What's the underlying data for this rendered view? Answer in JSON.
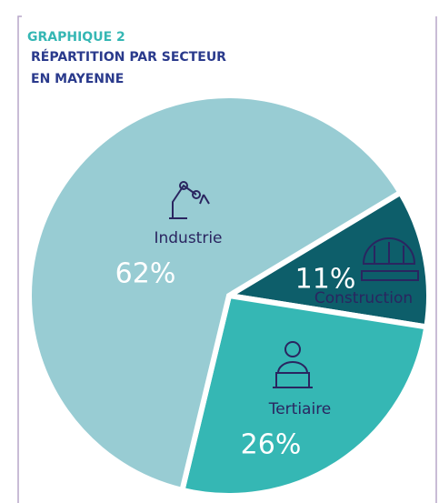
{
  "chart_data": {
    "type": "pie",
    "title": "GRAPHIQUE 2",
    "subtitle": [
      "RÉPARTITION PAR SECTEUR",
      "EN MAYENNE"
    ],
    "categories": [
      "Construction",
      "Tertiaire",
      "Industrie"
    ],
    "values": [
      11,
      26,
      62
    ],
    "value_labels": [
      "11%",
      "26%",
      "62%"
    ],
    "colors": [
      "#0d5e6a",
      "#35b7b4",
      "#98ccd3"
    ]
  }
}
